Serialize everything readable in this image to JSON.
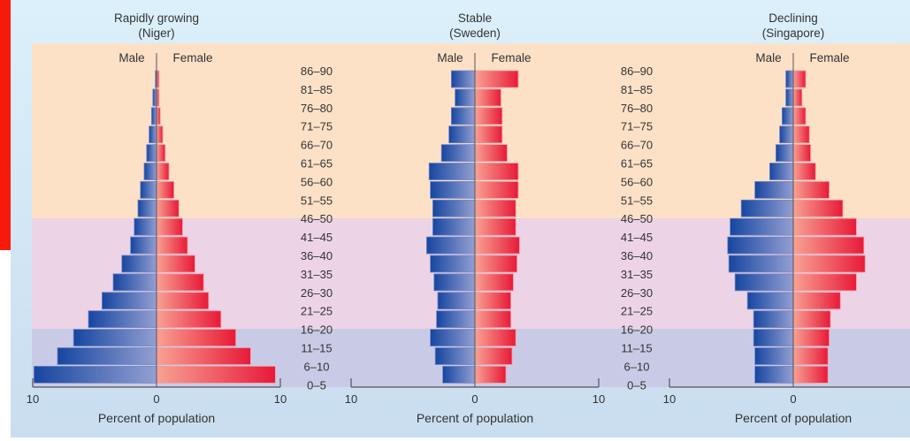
{
  "colors": {
    "accent_bar": "#f71a0a",
    "background": "#dcf0fb",
    "background_bottom": "#c9ddf0",
    "band_old": "#fde1c7",
    "band_middle": "#ecd3e6",
    "band_young": "#c9cbe6",
    "male_dark": "#1646a0",
    "male_light": "#949fd2",
    "female_light": "#f8a293",
    "female_dark": "#e81a38"
  },
  "chart_data": {
    "type": "bar",
    "orientation": "horizontal population pyramid",
    "age_groups": [
      "86–90",
      "81–85",
      "76–80",
      "71–75",
      "66–70",
      "61–65",
      "56–60",
      "51–55",
      "46–50",
      "41–45",
      "36–40",
      "31–35",
      "26–30",
      "21–25",
      "16–20",
      "11–15",
      "6–10",
      "0–5"
    ],
    "xlabel": "Percent of population",
    "xlim": [
      -10,
      10
    ],
    "xticks": [
      "10",
      "0",
      "10"
    ],
    "legend": {
      "male": "Male",
      "female": "Female"
    },
    "charts": [
      {
        "title": "Rapidly growing",
        "subtitle": "(Niger)",
        "male": [
          0.1,
          0.3,
          0.4,
          0.6,
          0.8,
          1.0,
          1.3,
          1.5,
          1.8,
          2.1,
          2.8,
          3.5,
          4.4,
          5.5,
          6.7,
          8.0,
          9.9,
          null
        ],
        "female": [
          0.2,
          0.2,
          0.3,
          0.5,
          0.7,
          1.0,
          1.4,
          1.8,
          2.1,
          2.5,
          3.1,
          3.8,
          4.2,
          5.2,
          6.4,
          7.6,
          9.6,
          null
        ]
      },
      {
        "title": "Stable",
        "subtitle": "(Sweden)",
        "male": [
          1.9,
          1.6,
          1.9,
          2.1,
          2.7,
          3.7,
          3.6,
          3.4,
          3.4,
          3.9,
          3.6,
          3.3,
          3.0,
          3.1,
          3.6,
          3.2,
          2.6,
          null
        ],
        "female": [
          3.5,
          2.1,
          2.2,
          2.2,
          2.6,
          3.5,
          3.5,
          3.3,
          3.3,
          3.6,
          3.4,
          3.1,
          2.9,
          2.9,
          3.3,
          3.0,
          2.5,
          null
        ]
      },
      {
        "title": "Declining",
        "subtitle": "(Singapore)",
        "male": [
          0.6,
          0.6,
          0.9,
          1.1,
          1.4,
          1.9,
          3.1,
          4.2,
          5.1,
          5.3,
          5.2,
          4.7,
          3.7,
          3.2,
          3.2,
          3.1,
          3.1,
          null
        ],
        "female": [
          1.0,
          0.7,
          1.0,
          1.3,
          1.4,
          1.8,
          2.9,
          4.0,
          5.1,
          5.7,
          5.8,
          5.1,
          3.8,
          3.0,
          2.9,
          2.8,
          2.8,
          null
        ]
      }
    ]
  }
}
